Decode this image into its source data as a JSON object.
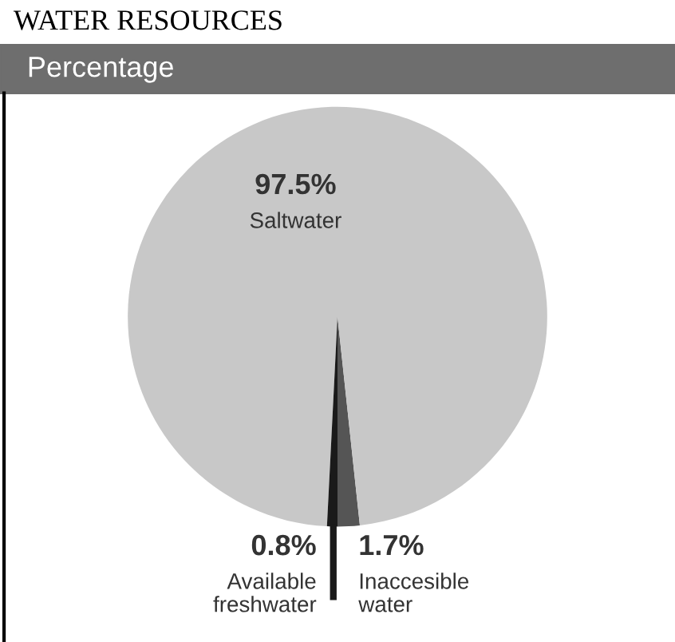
{
  "chart_data": {
    "type": "pie",
    "title": "WATER RESOURCES",
    "subtitle": "Percentage",
    "categories": [
      "Inaccesible water",
      "Saltwater",
      "Available freshwater"
    ],
    "values": [
      1.7,
      97.5,
      0.8
    ],
    "colors": [
      "#555555",
      "#c8c8c8",
      "#1a1a1a"
    ],
    "value_labels": [
      "1.7%",
      "97.5%",
      "0.8%"
    ]
  }
}
